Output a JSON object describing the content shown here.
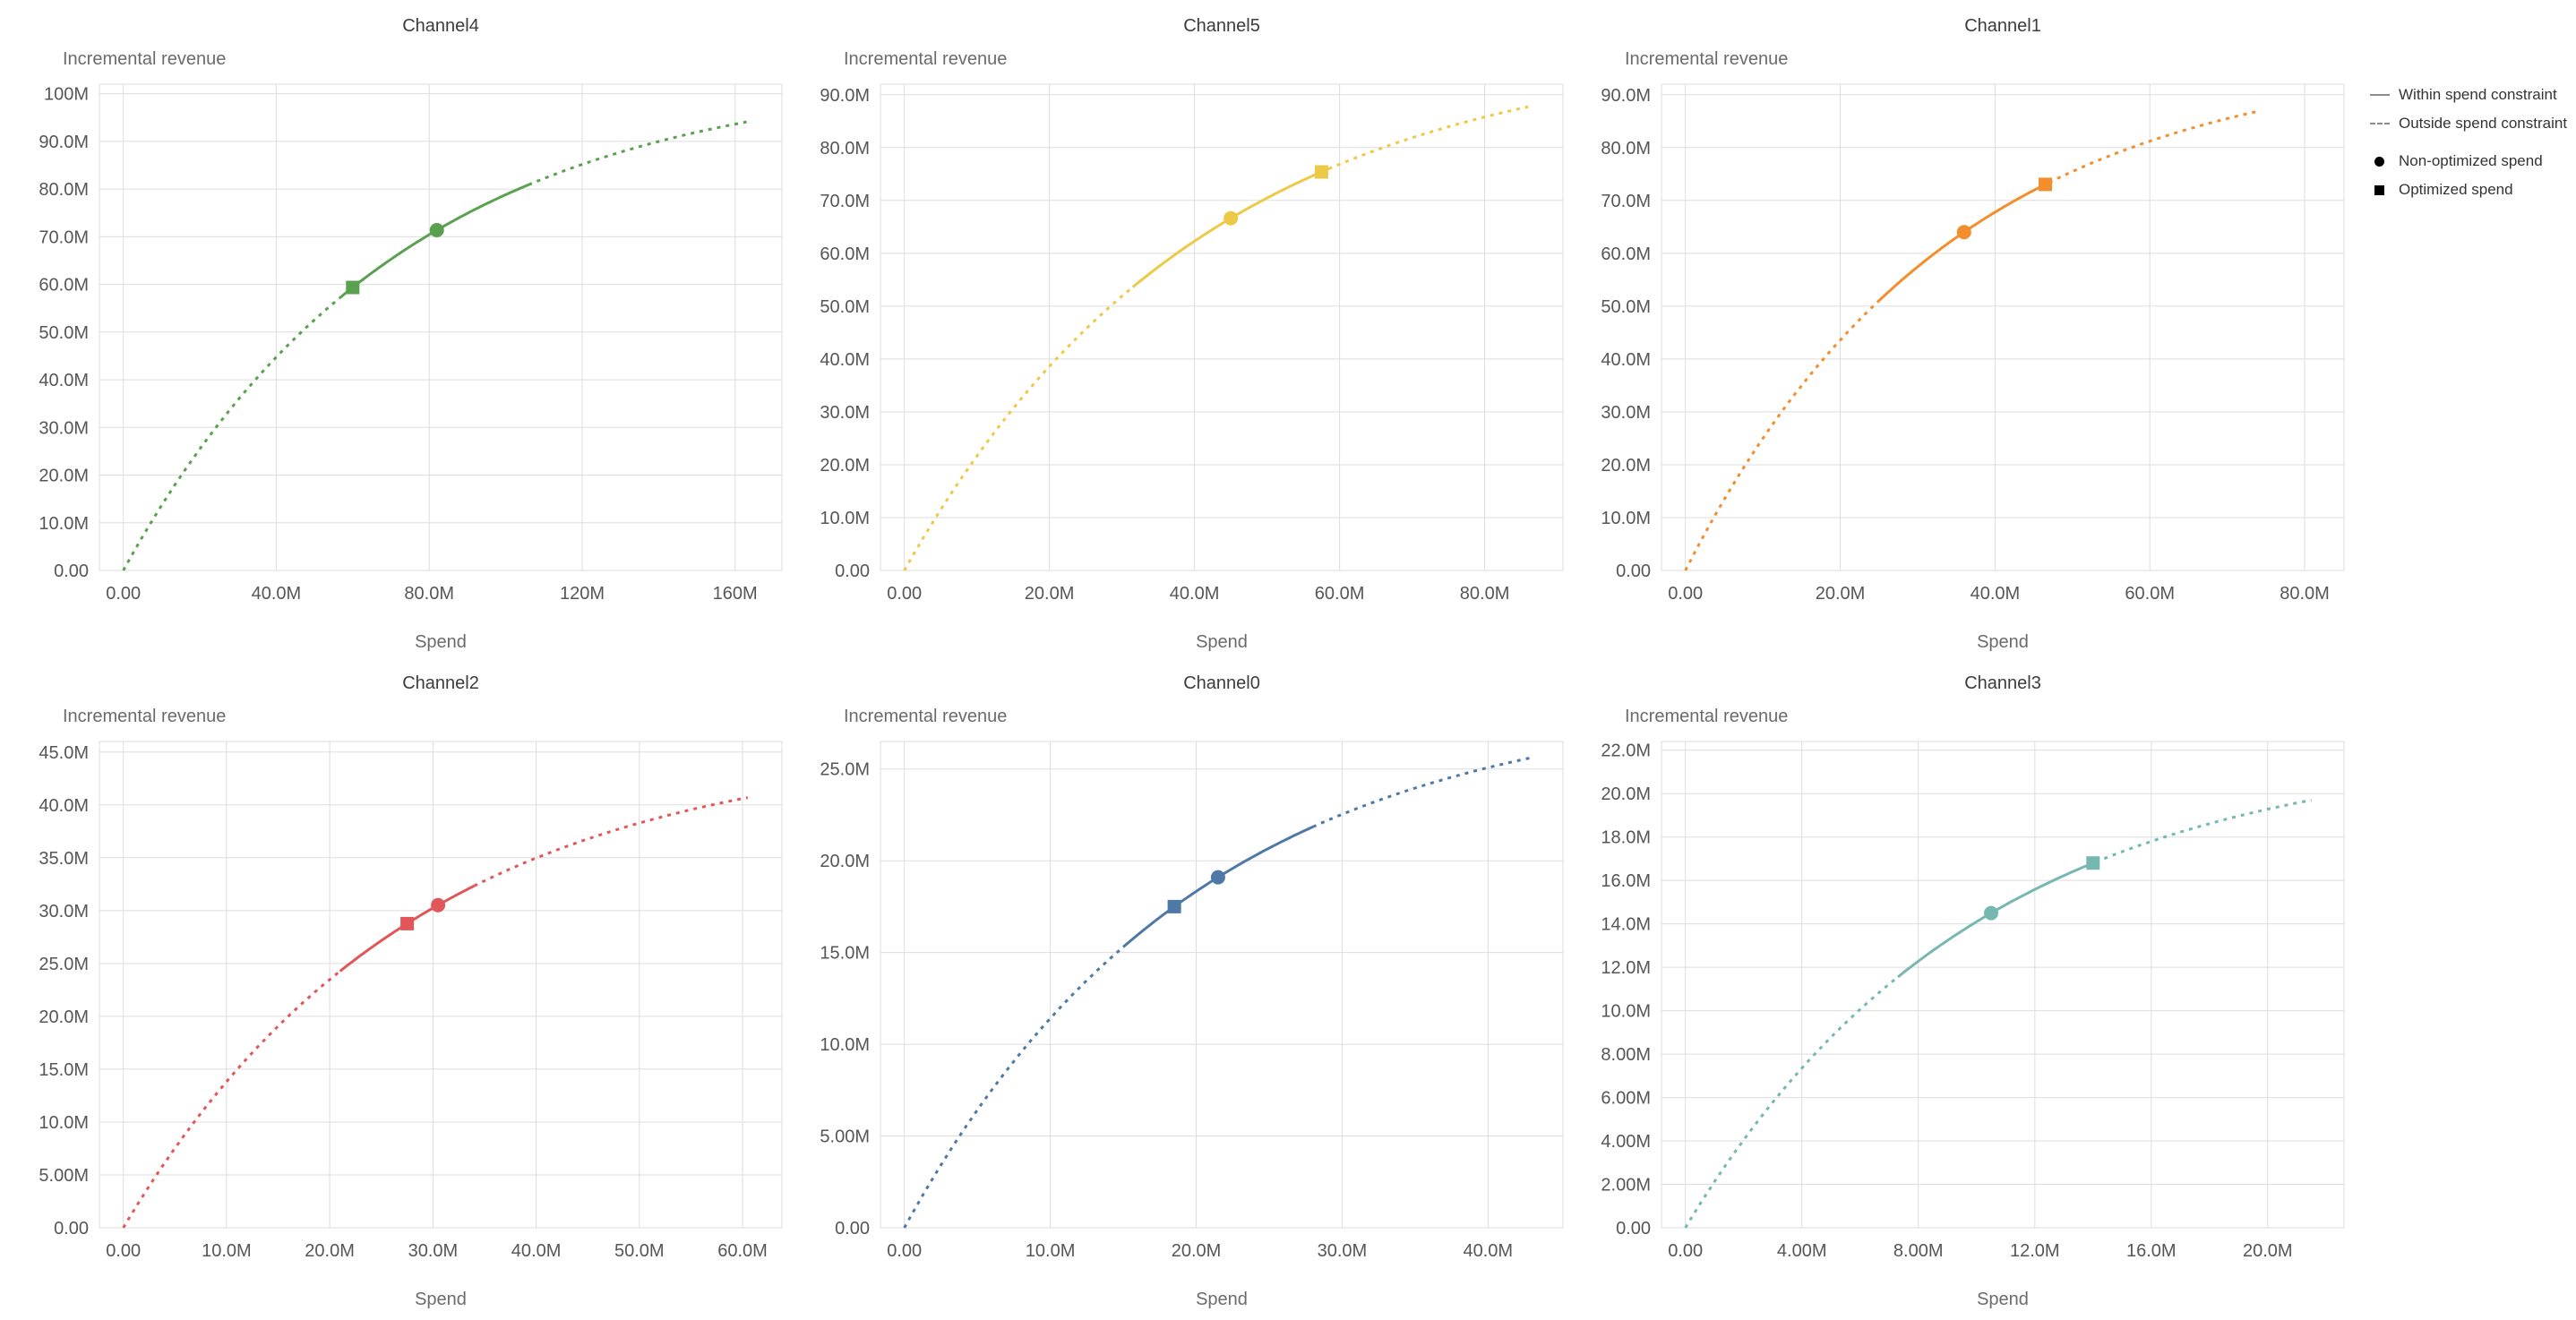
{
  "page": {
    "background": "#ffffff",
    "grid_layout": {
      "rows": 2,
      "cols": 3
    }
  },
  "legend": {
    "position": "top-right",
    "items": [
      {
        "label": "Within spend constraint",
        "symbol": "solid-line",
        "color": "#8c8c8c"
      },
      {
        "label": "Outside spend constraint",
        "symbol": "dashed-line",
        "color": "#8c8c8c"
      },
      {
        "label": "Non-optimized spend",
        "symbol": "filled-circle",
        "color": "#000000"
      },
      {
        "label": "Optimized spend",
        "symbol": "filled-square",
        "color": "#000000"
      }
    ]
  },
  "chart_data": [
    {
      "type": "line",
      "title": "Channel4",
      "xlabel": "Spend",
      "ylabel": "Incremental revenue",
      "color": "#59a14f",
      "units": "M",
      "curve": {
        "model": "y = max_effect * (1 - exp(-x/scale))",
        "max_effect": 105,
        "scale": 72
      },
      "x_end": 163,
      "solid_range": [
        57,
        106
      ],
      "non_optimized": {
        "spend": 82,
        "revenue": 71.4
      },
      "optimized": {
        "spend": 60,
        "revenue": 59.4
      },
      "x_domain": [
        0,
        166
      ],
      "y_domain": [
        0,
        102
      ],
      "x_ticks": {
        "values": [
          0,
          40,
          80,
          120,
          160
        ],
        "labels": [
          "0.00",
          "40.0M",
          "80.0M",
          "120M",
          "160M"
        ]
      },
      "y_ticks": {
        "values": [
          0,
          10,
          20,
          30,
          40,
          50,
          60,
          70,
          80,
          90,
          100
        ],
        "labels": [
          "0.00",
          "10.0M",
          "20.0M",
          "30.0M",
          "40.0M",
          "50.0M",
          "60.0M",
          "70.0M",
          "80.0M",
          "90.0M",
          "100M"
        ]
      }
    },
    {
      "type": "line",
      "title": "Channel5",
      "xlabel": "Spend",
      "ylabel": "Incremental revenue",
      "color": "#edc948",
      "units": "M",
      "curve": {
        "model": "y = max_effect * (1 - exp(-x/scale))",
        "max_effect": 100,
        "scale": 41
      },
      "x_end": 86,
      "solid_range": [
        31.5,
        58.5
      ],
      "non_optimized": {
        "spend": 45,
        "revenue": 66.6
      },
      "optimized": {
        "spend": 57.5,
        "revenue": 75.4
      },
      "x_domain": [
        0,
        87.5
      ],
      "y_domain": [
        0,
        92
      ],
      "x_ticks": {
        "values": [
          0,
          20,
          40,
          60,
          80
        ],
        "labels": [
          "0.00",
          "20.0M",
          "40.0M",
          "60.0M",
          "80.0M"
        ]
      },
      "y_ticks": {
        "values": [
          0,
          10,
          20,
          30,
          40,
          50,
          60,
          70,
          80,
          90
        ],
        "labels": [
          "0.00",
          "10.0M",
          "20.0M",
          "30.0M",
          "40.0M",
          "50.0M",
          "60.0M",
          "70.0M",
          "80.0M",
          "90.0M"
        ]
      }
    },
    {
      "type": "line",
      "title": "Channel1",
      "xlabel": "Spend",
      "ylabel": "Incremental revenue",
      "color": "#f28e2b",
      "units": "M",
      "curve": {
        "model": "y = max_effect * (1 - exp(-x/scale))",
        "max_effect": 98,
        "scale": 34
      },
      "x_end": 74,
      "solid_range": [
        25,
        47
      ],
      "non_optimized": {
        "spend": 36,
        "revenue": 64.0
      },
      "optimized": {
        "spend": 46.5,
        "revenue": 73.0
      },
      "x_domain": [
        0,
        82
      ],
      "y_domain": [
        0,
        92
      ],
      "x_ticks": {
        "values": [
          0,
          20,
          40,
          60,
          80
        ],
        "labels": [
          "0.00",
          "20.0M",
          "40.0M",
          "60.0M",
          "80.0M"
        ]
      },
      "y_ticks": {
        "values": [
          0,
          10,
          20,
          30,
          40,
          50,
          60,
          70,
          80,
          90
        ],
        "labels": [
          "0.00",
          "10.0M",
          "20.0M",
          "30.0M",
          "40.0M",
          "50.0M",
          "60.0M",
          "70.0M",
          "80.0M",
          "90.0M"
        ]
      }
    },
    {
      "type": "line",
      "title": "Channel2",
      "xlabel": "Spend",
      "ylabel": "Incremental revenue",
      "color": "#e15759",
      "units": "M",
      "curve": {
        "model": "y = max_effect * (1 - exp(-x/scale))",
        "max_effect": 46,
        "scale": 28
      },
      "x_end": 60.5,
      "solid_range": [
        21,
        34
      ],
      "non_optimized": {
        "spend": 30.5,
        "revenue": 30.5
      },
      "optimized": {
        "spend": 27.5,
        "revenue": 28.8
      },
      "x_domain": [
        0,
        61.5
      ],
      "y_domain": [
        0,
        46
      ],
      "x_ticks": {
        "values": [
          0,
          10,
          20,
          30,
          40,
          50,
          60
        ],
        "labels": [
          "0.00",
          "10.0M",
          "20.0M",
          "30.0M",
          "40.0M",
          "50.0M",
          "60.0M"
        ]
      },
      "y_ticks": {
        "values": [
          0,
          5,
          10,
          15,
          20,
          25,
          30,
          35,
          40,
          45
        ],
        "labels": [
          "0.00",
          "5.00M",
          "10.0M",
          "15.0M",
          "20.0M",
          "25.0M",
          "30.0M",
          "35.0M",
          "40.0M",
          "45.0M"
        ]
      }
    },
    {
      "type": "line",
      "title": "Channel0",
      "xlabel": "Spend",
      "ylabel": "Incremental revenue",
      "color": "#4e79a7",
      "units": "M",
      "curve": {
        "model": "y = max_effect * (1 - exp(-x/scale))",
        "max_effect": 29,
        "scale": 20
      },
      "x_end": 43,
      "solid_range": [
        15,
        28
      ],
      "non_optimized": {
        "spend": 21.5,
        "revenue": 19.1
      },
      "optimized": {
        "spend": 18.5,
        "revenue": 17.5
      },
      "x_domain": [
        0,
        43.5
      ],
      "y_domain": [
        0,
        26.5
      ],
      "x_ticks": {
        "values": [
          0,
          10,
          20,
          30,
          40
        ],
        "labels": [
          "0.00",
          "10.0M",
          "20.0M",
          "30.0M",
          "40.0M"
        ]
      },
      "y_ticks": {
        "values": [
          0,
          5,
          10,
          15,
          20,
          25
        ],
        "labels": [
          "0.00",
          "5.00M",
          "10.0M",
          "15.0M",
          "20.0M",
          "25.0M"
        ]
      }
    },
    {
      "type": "line",
      "title": "Channel3",
      "xlabel": "Spend",
      "ylabel": "Incremental revenue",
      "color": "#76b7b2",
      "units": "M",
      "curve": {
        "model": "y = max_effect * (1 - exp(-x/scale))",
        "max_effect": 22.3,
        "scale": 10
      },
      "x_end": 21.5,
      "solid_range": [
        7.3,
        14.1
      ],
      "non_optimized": {
        "spend": 10.5,
        "revenue": 14.5
      },
      "optimized": {
        "spend": 14,
        "revenue": 16.8
      },
      "x_domain": [
        0,
        21.8
      ],
      "y_domain": [
        0,
        22.4
      ],
      "x_ticks": {
        "values": [
          0,
          4,
          8,
          12,
          16,
          20
        ],
        "labels": [
          "0.00",
          "4.00M",
          "8.00M",
          "12.0M",
          "16.0M",
          "20.0M"
        ]
      },
      "y_ticks": {
        "values": [
          0,
          2,
          4,
          6,
          8,
          10,
          12,
          14,
          16,
          18,
          20,
          22
        ],
        "labels": [
          "0.00",
          "2.00M",
          "4.00M",
          "6.00M",
          "8.00M",
          "10.0M",
          "12.0M",
          "14.0M",
          "16.0M",
          "18.0M",
          "20.0M",
          "22.0M"
        ]
      }
    }
  ]
}
